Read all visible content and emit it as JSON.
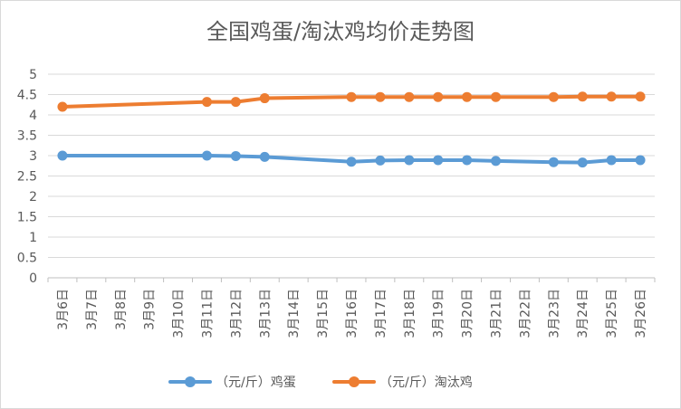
{
  "chart_data": {
    "type": "line",
    "title": "全国鸡蛋/淘汰鸡均价走势图",
    "xlabel": "",
    "ylabel": "",
    "ylim": [
      0,
      5
    ],
    "yticks": [
      "5",
      "4.5",
      "4",
      "3.5",
      "3",
      "2.5",
      "2",
      "1.5",
      "1",
      "0.5",
      "0"
    ],
    "categories": [
      "3月6日",
      "3月7日",
      "3月8日",
      "3月9日",
      "3月10日",
      "3月11日",
      "3月12日",
      "3月13日",
      "3月14日",
      "3月15日",
      "3月16日",
      "3月17日",
      "3月18日",
      "3月19日",
      "3月20日",
      "3月21日",
      "3月22日",
      "3月23日",
      "3月24日",
      "3月25日",
      "3月26日"
    ],
    "grid": true,
    "legend_position": "bottom",
    "series": [
      {
        "name": "（元/斤）鸡蛋",
        "color": "#5b9bd5",
        "values": [
          3.0,
          null,
          null,
          null,
          null,
          3.0,
          2.99,
          2.97,
          null,
          null,
          2.85,
          2.88,
          2.89,
          2.89,
          2.89,
          2.87,
          null,
          2.84,
          2.83,
          2.89,
          2.89
        ]
      },
      {
        "name": "（元/斤）淘汰鸡",
        "color": "#ed7d31",
        "values": [
          4.2,
          null,
          null,
          null,
          null,
          4.32,
          4.32,
          4.41,
          null,
          null,
          4.44,
          4.44,
          4.44,
          4.44,
          4.44,
          4.44,
          null,
          4.44,
          4.45,
          4.45,
          4.45
        ]
      }
    ]
  }
}
